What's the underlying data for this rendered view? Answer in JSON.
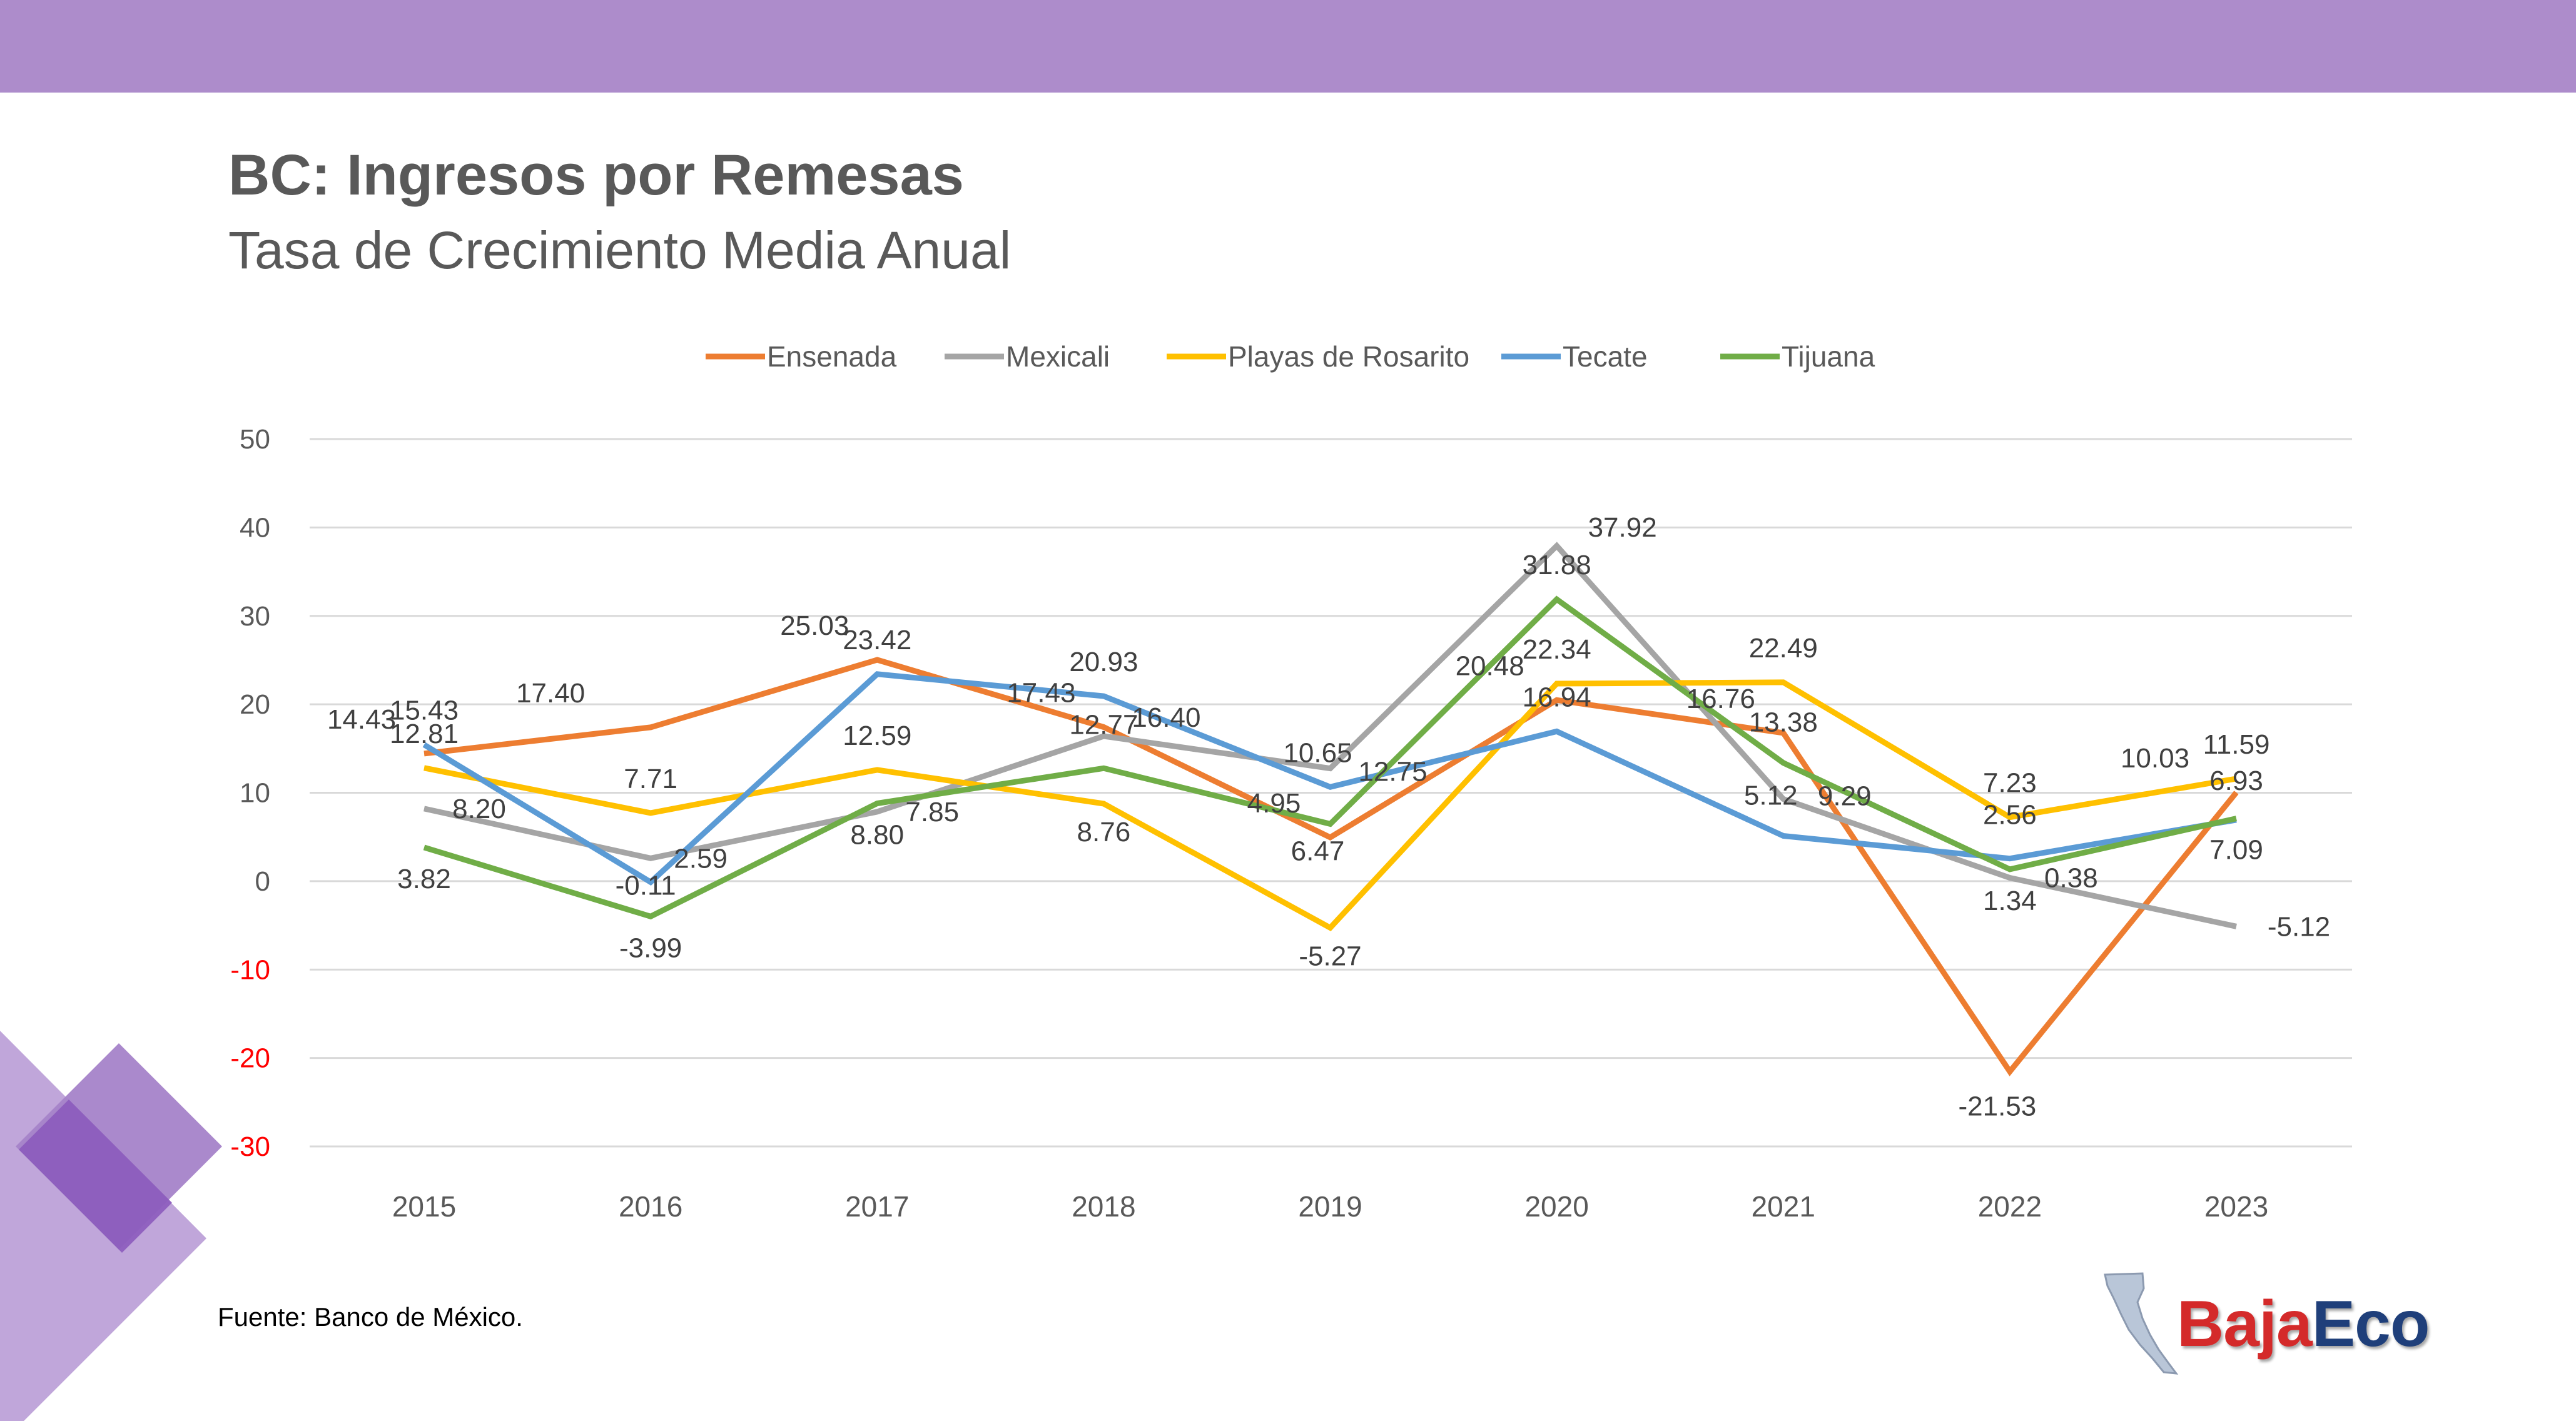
{
  "title": "BC: Ingresos por Remesas",
  "subtitle": "Tasa de Crecimiento Media Anual",
  "source": "Fuente: Banco de México.",
  "logo": {
    "part1": "Baja",
    "part2": "Eco"
  },
  "colors": {
    "header_band": "#ad8ccb",
    "negative_tick": "#ff0000",
    "deco_purple": "#8c5bbd"
  },
  "chart_data": {
    "type": "line",
    "categories": [
      "2015",
      "2016",
      "2017",
      "2018",
      "2019",
      "2020",
      "2021",
      "2022",
      "2023"
    ],
    "ylim": [
      -30,
      50
    ],
    "yticks": [
      50,
      40,
      30,
      20,
      10,
      0,
      -10,
      -20,
      -30
    ],
    "grid": true,
    "legend": "top",
    "series": [
      {
        "name": "Ensenada",
        "color": "#ed7d31",
        "values": [
          14.43,
          17.4,
          25.03,
          17.43,
          4.95,
          20.48,
          16.76,
          -21.53,
          10.03
        ]
      },
      {
        "name": "Mexicali",
        "color": "#a5a5a5",
        "values": [
          8.2,
          2.59,
          7.85,
          16.4,
          12.75,
          37.92,
          9.29,
          0.38,
          -5.12
        ]
      },
      {
        "name": "Playas de Rosarito",
        "color": "#ffc000",
        "values": [
          12.81,
          7.71,
          12.59,
          8.76,
          -5.27,
          22.34,
          22.49,
          7.23,
          11.59
        ]
      },
      {
        "name": "Tecate",
        "color": "#5b9bd5",
        "values": [
          15.43,
          -0.11,
          23.42,
          20.93,
          10.65,
          16.94,
          5.12,
          2.56,
          6.93
        ]
      },
      {
        "name": "Tijuana",
        "color": "#70ad47",
        "values": [
          3.82,
          -3.99,
          8.8,
          12.77,
          6.47,
          31.88,
          13.38,
          1.34,
          7.09
        ]
      }
    ]
  }
}
